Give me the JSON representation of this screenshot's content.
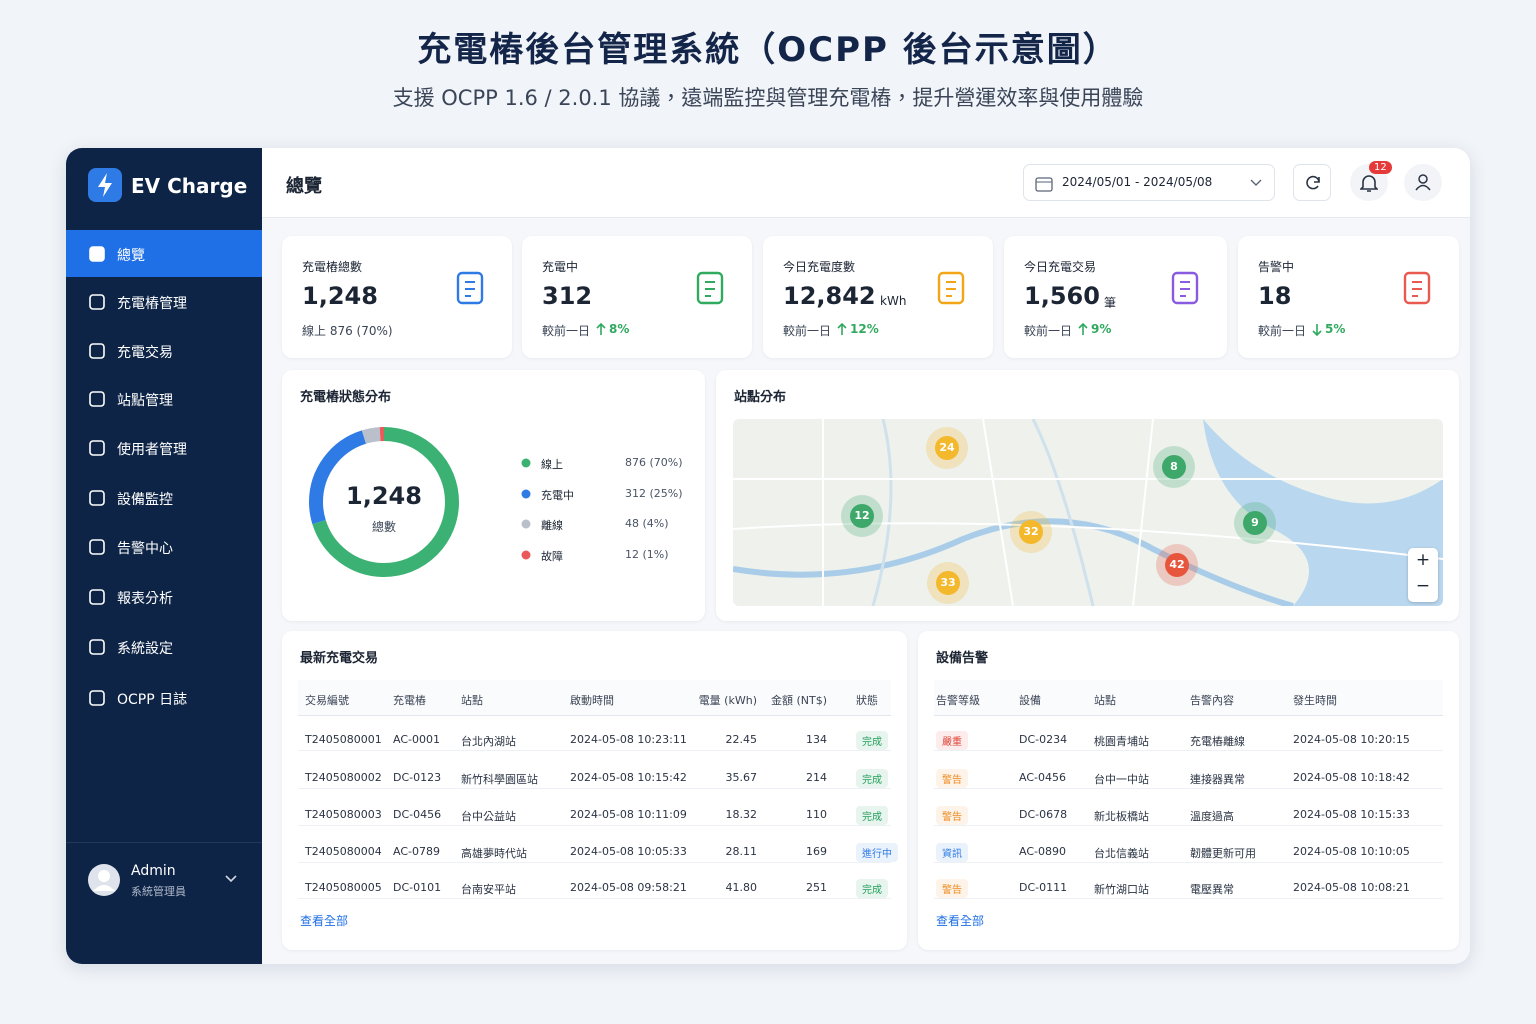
{
  "header": {
    "title": "充電樁後台管理系統（OCPP 後台示意圖）",
    "subtitle": "支援 OCPP 1.6 / 2.0.1 協議，遠端監控與管理充電樁，提升營運效率與使用體驗"
  },
  "sidebar": {
    "brand": "EV Charge",
    "menu": [
      "總覽",
      "充電樁管理",
      "充電交易",
      "站點管理",
      "使用者管理",
      "設備監控",
      "告警中心",
      "報表分析",
      "系統設定",
      "OCPP 日誌"
    ],
    "active": 0,
    "user": {
      "name": "Admin",
      "role": "系統管理員"
    }
  },
  "topbar": {
    "page_title": "總覽",
    "date_range": "2024/05/01 - 2024/05/08",
    "notifications": "12"
  },
  "kpis": [
    {
      "label": "充電樁總數",
      "value": "1,248",
      "note": "線上 876 (70%)",
      "color": "#2f7be5"
    },
    {
      "label": "充電中",
      "value": "312",
      "compare": "較前一日",
      "change": "8%",
      "trend": "up",
      "color": "#2faa5f"
    },
    {
      "label": "今日充電度數",
      "value": "12,842",
      "unit": "kWh",
      "compare": "較前一日",
      "change": "12%",
      "trend": "up",
      "color": "#f2a516"
    },
    {
      "label": "今日充電交易",
      "value": "1,560",
      "unit": "筆",
      "compare": "較前一日",
      "change": "9%",
      "trend": "up",
      "color": "#8a5be0"
    },
    {
      "label": "告警中",
      "value": "18",
      "compare": "較前一日",
      "change": "5%",
      "trend": "down",
      "color": "#e85a4f"
    }
  ],
  "status_chart": {
    "title": "充電樁狀態分布",
    "center_value": "1,248",
    "center_label": "總數",
    "segments": [
      {
        "name": "線上",
        "value": 876,
        "value_label": "876 (70%)",
        "color": "#3bb273"
      },
      {
        "name": "充電中",
        "value": 312,
        "value_label": "312 (25%)",
        "color": "#2f7be5"
      },
      {
        "name": "離線",
        "value": 48,
        "value_label": "48 (4%)",
        "color": "#b9c0cb"
      },
      {
        "name": "故障",
        "value": 12,
        "value_label": "12 (1%)",
        "color": "#ea5a5a"
      }
    ]
  },
  "map": {
    "title": "站點分布",
    "clusters": [
      {
        "label": "24",
        "color": "#f4b82c"
      },
      {
        "label": "8",
        "color": "#3da86a"
      },
      {
        "label": "12",
        "color": "#3da86a"
      },
      {
        "label": "32",
        "color": "#f4b82c"
      },
      {
        "label": "9",
        "color": "#3da86a"
      },
      {
        "label": "42",
        "color": "#e8553d"
      },
      {
        "label": "33",
        "color": "#f4b82c"
      }
    ],
    "zoom_in": "+",
    "zoom_out": "−"
  },
  "transactions": {
    "title": "最新充電交易",
    "columns": [
      "交易編號",
      "充電樁",
      "站點",
      "啟動時間",
      "電量 (kWh)",
      "金額 (NT$)",
      "狀態"
    ],
    "rows": [
      [
        "T2405080001",
        "AC-0001",
        "台北內湖站",
        "2024-05-08 10:23:11",
        "22.45",
        "134",
        "完成"
      ],
      [
        "T2405080002",
        "DC-0123",
        "新竹科學園區站",
        "2024-05-08 10:15:42",
        "35.67",
        "214",
        "完成"
      ],
      [
        "T2405080003",
        "DC-0456",
        "台中公益站",
        "2024-05-08 10:11:09",
        "18.32",
        "110",
        "完成"
      ],
      [
        "T2405080004",
        "AC-0789",
        "高雄夢時代站",
        "2024-05-08 10:05:33",
        "28.11",
        "169",
        "進行中"
      ],
      [
        "T2405080005",
        "DC-0101",
        "台南安平站",
        "2024-05-08 09:58:21",
        "41.80",
        "251",
        "完成"
      ]
    ],
    "badge_colors": {
      "完成": "#22a05b",
      "進行中": "#2f7be5"
    },
    "link": "查看全部"
  },
  "alerts": {
    "title": "設備告警",
    "columns": [
      "告警等級",
      "設備",
      "站點",
      "告警內容",
      "發生時間"
    ],
    "rows": [
      [
        "嚴重",
        "DC-0234",
        "桃園青埔站",
        "充電樁離線",
        "2024-05-08 10:20:15"
      ],
      [
        "警告",
        "AC-0456",
        "台中一中站",
        "連接器異常",
        "2024-05-08 10:18:42"
      ],
      [
        "警告",
        "DC-0678",
        "新北板橋站",
        "溫度過高",
        "2024-05-08 10:15:33"
      ],
      [
        "資訊",
        "AC-0890",
        "台北信義站",
        "韌體更新可用",
        "2024-05-08 10:10:05"
      ],
      [
        "警告",
        "DC-0111",
        "新竹湖口站",
        "電壓異常",
        "2024-05-08 10:08:21"
      ]
    ],
    "badge_colors": {
      "嚴重": "#e0453a",
      "警告": "#ee8a1c",
      "資訊": "#2f7be5"
    },
    "link": "查看全部"
  }
}
